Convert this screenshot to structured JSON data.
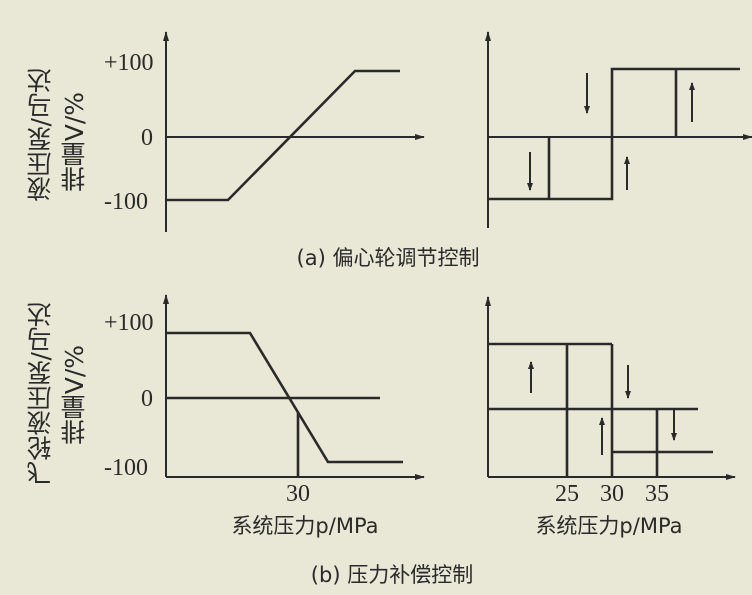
{
  "panel_a": {
    "caption": "(a) 偏心轮调节控制",
    "ylabel_line1": "液压泵/马达",
    "ylabel_line2": "排量V/%",
    "y_ticks": [
      "+100",
      "0",
      "-100"
    ]
  },
  "panel_b": {
    "caption": "(b) 压力补偿控制",
    "ylabel_line1": "飞轮液压泵/马达",
    "ylabel_line2": "排量V/%",
    "y_ticks": [
      "+100",
      "0",
      "-100"
    ],
    "left_x_ticks": [
      "30"
    ],
    "right_x_ticks": [
      "25",
      "30",
      "35"
    ],
    "left_xlabel": "系统压力p/MPa",
    "right_xlabel": "系统压力p/MPa"
  }
}
